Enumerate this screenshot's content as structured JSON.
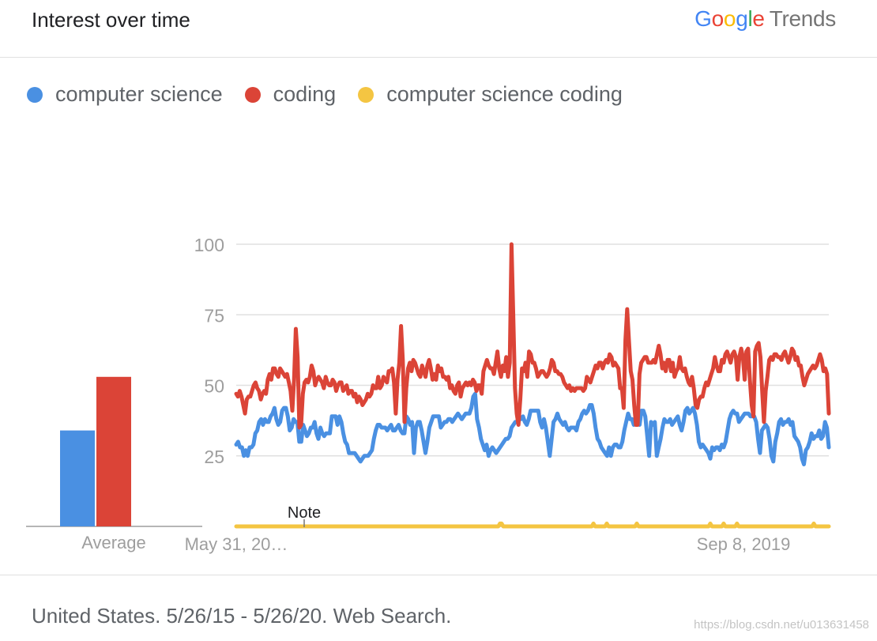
{
  "header": {
    "title": "Interest over time",
    "brand_google": [
      "G",
      "o",
      "o",
      "g",
      "l",
      "e"
    ],
    "brand_google_colors": [
      "#4285F4",
      "#EA4335",
      "#FBBC05",
      "#4285F4",
      "#34A853",
      "#EA4335"
    ],
    "brand_trends": "Trends"
  },
  "legend": [
    {
      "label": "computer science",
      "color": "#4a90e2"
    },
    {
      "label": "coding",
      "color": "#db4437"
    },
    {
      "label": "computer science coding",
      "color": "#f4c542"
    }
  ],
  "average_label": "Average",
  "note_label": "Note",
  "x_tick_labels": [
    "May 31, 20…",
    "Sep 8, 2019"
  ],
  "footer": {
    "text": "United States. 5/26/15 - 5/26/20. Web Search.",
    "watermark": "https://blog.csdn.net/u013631458"
  },
  "chart_data": {
    "type": "line",
    "title": "Interest over time",
    "ylim": [
      0,
      100
    ],
    "yticks": [
      25,
      50,
      75,
      100
    ],
    "grid": true,
    "legend_position": "top-left",
    "series": [
      {
        "name": "computer science",
        "color": "#4a90e2",
        "average": 34,
        "values": [
          29,
          30,
          28,
          28,
          25,
          27,
          25,
          28,
          28,
          29,
          33,
          34,
          37,
          38,
          36,
          38,
          37,
          37,
          39,
          40,
          42,
          38,
          36,
          37,
          41,
          42,
          42,
          39,
          34,
          35,
          38,
          37,
          37,
          30,
          30,
          36,
          34,
          32,
          33,
          35,
          35,
          37,
          33,
          31,
          35,
          33,
          32,
          33,
          33,
          33,
          39,
          39,
          39,
          36,
          39,
          37,
          33,
          30,
          29,
          26,
          26,
          26,
          26,
          25,
          24,
          23,
          24,
          25,
          25,
          25,
          26,
          27,
          31,
          34,
          36,
          36,
          35,
          35,
          35,
          34,
          35,
          36,
          34,
          34,
          35,
          36,
          34,
          33,
          33,
          39,
          38,
          36,
          37,
          26,
          35,
          37,
          37,
          34,
          30,
          26,
          30,
          35,
          37,
          39,
          39,
          39,
          39,
          35,
          36,
          37,
          37,
          38,
          38,
          37,
          38,
          39,
          40,
          39,
          38,
          39,
          40,
          40,
          40,
          42,
          46,
          47,
          38,
          35,
          31,
          29,
          27,
          29,
          25,
          27,
          28,
          27,
          26,
          27,
          28,
          29,
          30,
          31,
          31,
          32,
          35,
          36,
          37,
          37,
          38,
          38,
          39,
          37,
          36,
          38,
          41,
          41,
          41,
          41,
          41,
          37,
          35,
          38,
          35,
          30,
          25,
          31,
          37,
          38,
          40,
          38,
          37,
          36,
          37,
          35,
          34,
          35,
          35,
          35,
          34,
          37,
          38,
          40,
          41,
          40,
          41,
          43,
          43,
          40,
          35,
          31,
          30,
          28,
          27,
          26,
          25,
          28,
          25,
          28,
          29,
          29,
          28,
          28,
          30,
          34,
          37,
          40,
          38,
          38,
          36,
          38,
          38,
          36,
          41,
          41,
          39,
          32,
          25,
          37,
          36,
          37,
          25,
          28,
          31,
          35,
          38,
          37,
          37,
          38,
          36,
          37,
          38,
          39,
          36,
          34,
          37,
          41,
          42,
          40,
          41,
          42,
          40,
          36,
          30,
          28,
          29,
          28,
          27,
          26,
          24,
          28,
          27,
          28,
          28,
          27,
          29,
          28,
          30,
          34,
          38,
          40,
          41,
          40,
          40,
          37,
          38,
          39,
          40,
          40,
          40,
          39,
          39,
          39,
          37,
          31,
          26,
          34,
          35,
          36,
          35,
          31,
          25,
          23,
          30,
          33,
          37,
          38,
          36,
          37,
          37,
          38,
          36,
          37,
          32,
          31,
          30,
          28,
          24,
          22,
          27,
          28,
          30,
          33,
          31,
          32,
          32,
          34,
          31,
          32,
          37,
          35,
          28
        ]
      },
      {
        "name": "coding",
        "color": "#db4437",
        "average": 53,
        "values": [
          47,
          46,
          48,
          46,
          43,
          40,
          45,
          46,
          46,
          48,
          50,
          51,
          49,
          48,
          45,
          47,
          48,
          47,
          52,
          54,
          52,
          56,
          56,
          54,
          53,
          56,
          55,
          54,
          53,
          54,
          51,
          48,
          41,
          52,
          70,
          60,
          35,
          36,
          47,
          51,
          52,
          51,
          53,
          57,
          55,
          50,
          52,
          53,
          52,
          51,
          49,
          53,
          51,
          50,
          50,
          52,
          51,
          48,
          50,
          51,
          51,
          48,
          49,
          50,
          47,
          48,
          48,
          46,
          47,
          44,
          46,
          45,
          43,
          44,
          45,
          47,
          46,
          47,
          50,
          49,
          49,
          53,
          49,
          50,
          53,
          52,
          51,
          55,
          55,
          56,
          51,
          40,
          52,
          58,
          71,
          59,
          37,
          49,
          56,
          58,
          55,
          59,
          58,
          56,
          54,
          53,
          57,
          55,
          53,
          57,
          59,
          56,
          52,
          54,
          52,
          57,
          55,
          56,
          53,
          53,
          52,
          53,
          49,
          50,
          48,
          47,
          50,
          51,
          46,
          49,
          50,
          51,
          50,
          51,
          50,
          52,
          51,
          48,
          50,
          50,
          47,
          55,
          57,
          59,
          57,
          56,
          56,
          54,
          58,
          62,
          56,
          53,
          57,
          55,
          60,
          53,
          58,
          100,
          75,
          49,
          40,
          36,
          45,
          56,
          55,
          58,
          53,
          62,
          61,
          58,
          58,
          56,
          53,
          54,
          55,
          55,
          54,
          53,
          54,
          56,
          59,
          58,
          55,
          55,
          54,
          54,
          53,
          51,
          50,
          49,
          50,
          48,
          49,
          48,
          49,
          49,
          49,
          49,
          48,
          49,
          53,
          52,
          51,
          53,
          55,
          57,
          56,
          58,
          58,
          56,
          58,
          59,
          58,
          61,
          60,
          57,
          58,
          57,
          56,
          49,
          49,
          42,
          66,
          77,
          66,
          55,
          52,
          43,
          36,
          36,
          54,
          58,
          59,
          60,
          60,
          58,
          58,
          58,
          59,
          58,
          61,
          64,
          61,
          56,
          58,
          55,
          59,
          59,
          55,
          58,
          53,
          55,
          56,
          60,
          56,
          55,
          56,
          53,
          51,
          50,
          53,
          49,
          43,
          42,
          45,
          46,
          46,
          49,
          51,
          50,
          52,
          54,
          56,
          60,
          57,
          55,
          55,
          59,
          58,
          61,
          62,
          60,
          58,
          61,
          62,
          60,
          52,
          60,
          63,
          60,
          52,
          62,
          63,
          52,
          43,
          39,
          62,
          64,
          65,
          60,
          48,
          37,
          48,
          53,
          59,
          60,
          59,
          61,
          61,
          60,
          60,
          59,
          61,
          62,
          60,
          58,
          60,
          63,
          62,
          59,
          60,
          57,
          57,
          53,
          50,
          52,
          54,
          55,
          56,
          57,
          56,
          57,
          59,
          61,
          59,
          55,
          56,
          54,
          40
        ]
      },
      {
        "name": "computer science coding",
        "color": "#f4c542",
        "average": 0,
        "values": [
          0,
          0,
          0,
          0,
          0,
          0,
          0,
          0,
          0,
          0,
          0,
          0,
          0,
          0,
          0,
          0,
          0,
          0,
          0,
          0,
          0,
          0,
          0,
          0,
          0,
          0,
          0,
          0,
          0,
          0,
          0,
          0,
          0,
          0,
          0,
          0,
          0,
          0,
          0,
          0,
          0,
          0,
          0,
          0,
          0,
          0,
          0,
          0,
          0,
          0,
          0,
          0,
          0,
          0,
          0,
          0,
          0,
          0,
          0,
          0,
          0,
          0,
          0,
          0,
          0,
          0,
          0,
          0,
          0,
          0,
          0,
          0,
          0,
          0,
          0,
          0,
          0,
          0,
          0,
          0,
          0,
          0,
          0,
          0,
          0,
          0,
          0,
          0,
          0,
          0,
          0,
          0,
          0,
          0,
          0,
          0,
          0,
          0,
          0,
          0,
          0,
          0,
          0,
          0,
          0,
          0,
          0,
          0,
          0,
          0,
          0,
          0,
          0,
          0,
          0,
          0,
          0,
          0,
          0,
          0,
          0,
          0,
          0,
          0,
          0,
          0,
          0,
          0,
          0,
          0,
          0,
          0,
          0,
          0,
          0,
          0,
          0,
          0,
          0,
          0,
          0,
          0,
          0,
          0,
          0,
          0,
          0,
          0,
          0,
          0,
          0,
          0,
          0,
          0,
          0,
          0,
          0,
          0,
          0,
          0,
          0,
          0,
          0,
          0,
          0,
          0,
          0,
          0,
          0,
          0,
          0,
          0,
          0,
          0,
          0,
          0,
          0,
          0,
          0,
          0,
          0,
          0,
          0,
          0,
          0,
          0,
          0,
          0,
          0,
          0,
          0,
          0,
          0,
          0,
          0,
          0,
          0,
          0,
          0,
          0,
          0,
          0,
          0,
          0,
          0,
          0,
          0,
          0,
          0,
          0,
          0,
          0,
          0,
          0,
          0,
          0,
          0,
          0,
          0,
          0,
          0,
          0,
          0,
          0,
          0,
          0,
          0,
          0,
          0,
          0,
          0,
          0,
          0,
          0,
          0,
          0,
          0,
          0,
          0,
          0,
          0,
          0,
          0,
          0,
          0,
          0,
          0,
          0,
          0,
          0,
          0,
          0,
          0,
          0,
          0,
          0,
          0,
          0,
          0,
          0,
          0,
          0,
          0,
          0,
          0,
          0,
          0,
          0,
          0,
          0,
          0,
          0,
          0,
          0,
          0,
          0,
          0,
          0,
          0,
          0,
          0,
          0,
          0,
          0,
          0,
          0,
          0,
          0,
          0,
          0,
          0,
          0,
          0,
          0,
          0,
          0,
          0,
          0,
          0,
          0,
          0,
          0,
          0,
          0,
          0,
          0,
          0,
          0,
          0,
          0,
          0,
          0,
          0,
          0,
          0,
          0,
          0,
          0,
          0,
          0,
          0,
          0,
          0,
          0,
          0,
          0,
          0,
          0,
          0,
          0,
          0,
          0,
          0,
          0,
          0,
          0,
          0,
          0,
          0,
          0,
          0,
          0,
          0,
          0,
          0,
          0,
          0,
          0,
          0,
          0,
          0,
          0,
          0,
          0,
          0,
          0
        ]
      }
    ],
    "spikes_series3": [
      158,
      159,
      214,
      222,
      240,
      284,
      292,
      300,
      346
    ],
    "spike_value": 1
  }
}
